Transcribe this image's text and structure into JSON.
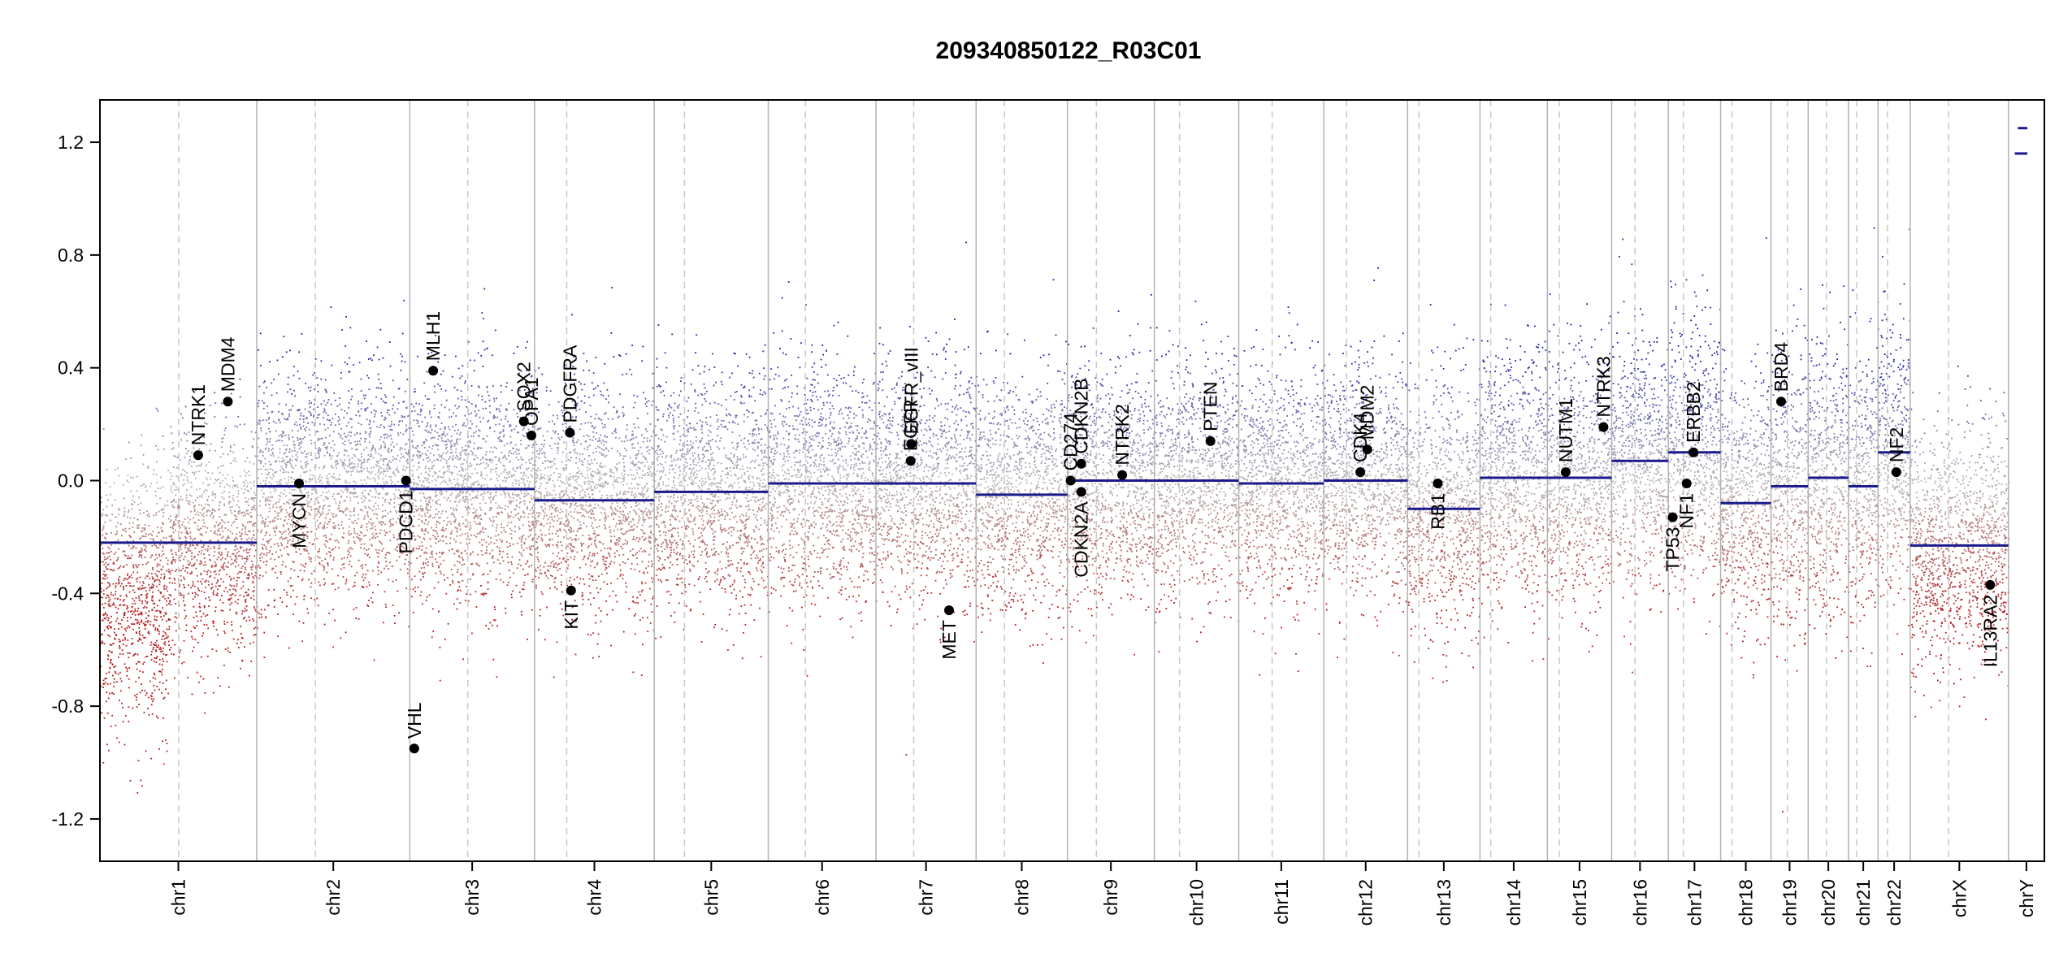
{
  "chart_data": {
    "type": "scatter",
    "title": "209340850122_R03C01",
    "xlabel": "",
    "ylabel": "",
    "ylim": [
      -1.35,
      1.35
    ],
    "y_ticks": [
      {
        "value": 1.2,
        "label": "1.2"
      },
      {
        "value": 0.8,
        "label": "0.8"
      },
      {
        "value": 0.4,
        "label": "0.4"
      },
      {
        "value": 0.0,
        "label": "0.0"
      },
      {
        "value": -0.4,
        "label": "-0.4"
      },
      {
        "value": -0.8,
        "label": "-0.8"
      },
      {
        "value": -1.2,
        "label": "-1.2"
      }
    ],
    "colors": {
      "gain": "#1f1fa3",
      "loss": "#b31b1b",
      "neutral": "#b4b4b4",
      "segment": "#1a1a8c",
      "boundary": "#b3b3b3",
      "centromere": "#c8c8c8",
      "gene": "#000000"
    },
    "chromosomes": [
      {
        "name": "chr1",
        "label": "chr1",
        "start": 0,
        "end": 249,
        "centromere": 125,
        "noise": 0.2
      },
      {
        "name": "chr2",
        "label": "chr2",
        "start": 249,
        "end": 492,
        "centromere": 342,
        "noise": 0.2
      },
      {
        "name": "chr3",
        "label": "chr3",
        "start": 492,
        "end": 690,
        "centromere": 584,
        "noise": 0.2
      },
      {
        "name": "chr4",
        "label": "chr4",
        "start": 690,
        "end": 880,
        "centromere": 741,
        "noise": 0.2
      },
      {
        "name": "chr5",
        "label": "chr5",
        "start": 880,
        "end": 1061,
        "centromere": 928,
        "noise": 0.2
      },
      {
        "name": "chr6",
        "label": "chr6",
        "start": 1061,
        "end": 1232,
        "centromere": 1120,
        "noise": 0.2
      },
      {
        "name": "chr7",
        "label": "chr7",
        "start": 1232,
        "end": 1391,
        "centromere": 1292,
        "noise": 0.2
      },
      {
        "name": "chr8",
        "label": "chr8",
        "start": 1391,
        "end": 1536,
        "centromere": 1436,
        "noise": 0.2
      },
      {
        "name": "chr9",
        "label": "chr9",
        "start": 1536,
        "end": 1674,
        "centromere": 1582,
        "noise": 0.2
      },
      {
        "name": "chr10",
        "label": "chr10",
        "start": 1674,
        "end": 1808,
        "centromere": 1714,
        "noise": 0.2
      },
      {
        "name": "chr11",
        "label": "chr11",
        "start": 1808,
        "end": 1943,
        "centromere": 1861,
        "noise": 0.2
      },
      {
        "name": "chr12",
        "label": "chr12",
        "start": 1943,
        "end": 2076,
        "centromere": 1979,
        "noise": 0.2
      },
      {
        "name": "chr13",
        "label": "chr13",
        "start": 2076,
        "end": 2191,
        "centromere": 2094,
        "noise": 0.22
      },
      {
        "name": "chr14",
        "label": "chr14",
        "start": 2191,
        "end": 2298,
        "centromere": 2208,
        "noise": 0.22
      },
      {
        "name": "chr15",
        "label": "chr15",
        "start": 2298,
        "end": 2400,
        "centromere": 2317,
        "noise": 0.22
      },
      {
        "name": "chr16",
        "label": "chr16",
        "start": 2400,
        "end": 2490,
        "centromere": 2437,
        "noise": 0.22
      },
      {
        "name": "chr17",
        "label": "chr17",
        "start": 2490,
        "end": 2573,
        "centromere": 2514,
        "noise": 0.22
      },
      {
        "name": "chr18",
        "label": "chr18",
        "start": 2573,
        "end": 2653,
        "centromere": 2591,
        "noise": 0.22
      },
      {
        "name": "chr19",
        "label": "chr19",
        "start": 2653,
        "end": 2712,
        "centromere": 2679,
        "noise": 0.24
      },
      {
        "name": "chr20",
        "label": "chr20",
        "start": 2712,
        "end": 2776,
        "centromere": 2741,
        "noise": 0.24
      },
      {
        "name": "chr21",
        "label": "chr21",
        "start": 2776,
        "end": 2823,
        "centromere": 2789,
        "noise": 0.24
      },
      {
        "name": "chr22",
        "label": "chr22",
        "start": 2823,
        "end": 2874,
        "centromere": 2838,
        "noise": 0.24
      },
      {
        "name": "chrX",
        "label": "chrX",
        "start": 2874,
        "end": 3030,
        "centromere": 2935,
        "noise": 0.2
      },
      {
        "name": "chrY",
        "label": "chrY",
        "start": 3030,
        "end": 3087,
        "centromere": null,
        "noise": 0.0
      }
    ],
    "segments": [
      {
        "chrom": "chr1",
        "start": 0,
        "end": 249,
        "value": -0.22
      },
      {
        "chrom": "chr2",
        "start": 249,
        "end": 492,
        "value": -0.02
      },
      {
        "chrom": "chr3",
        "start": 492,
        "end": 690,
        "value": -0.03
      },
      {
        "chrom": "chr4",
        "start": 690,
        "end": 880,
        "value": -0.07
      },
      {
        "chrom": "chr5",
        "start": 880,
        "end": 1061,
        "value": -0.04
      },
      {
        "chrom": "chr6",
        "start": 1061,
        "end": 1232,
        "value": -0.01
      },
      {
        "chrom": "chr7",
        "start": 1232,
        "end": 1391,
        "value": -0.01
      },
      {
        "chrom": "chr8",
        "start": 1391,
        "end": 1536,
        "value": -0.05
      },
      {
        "chrom": "chr9",
        "start": 1536,
        "end": 1674,
        "value": 0.0
      },
      {
        "chrom": "chr10",
        "start": 1674,
        "end": 1808,
        "value": 0.0
      },
      {
        "chrom": "chr11",
        "start": 1808,
        "end": 1943,
        "value": -0.01
      },
      {
        "chrom": "chr12",
        "start": 1943,
        "end": 2076,
        "value": 0.0
      },
      {
        "chrom": "chr13",
        "start": 2076,
        "end": 2191,
        "value": -0.1
      },
      {
        "chrom": "chr14",
        "start": 2191,
        "end": 2298,
        "value": 0.01
      },
      {
        "chrom": "chr15",
        "start": 2298,
        "end": 2400,
        "value": 0.01
      },
      {
        "chrom": "chr16",
        "start": 2400,
        "end": 2490,
        "value": 0.07
      },
      {
        "chrom": "chr17",
        "start": 2490,
        "end": 2573,
        "value": 0.1
      },
      {
        "chrom": "chr18",
        "start": 2573,
        "end": 2653,
        "value": -0.08
      },
      {
        "chrom": "chr19",
        "start": 2653,
        "end": 2712,
        "value": -0.02
      },
      {
        "chrom": "chr20",
        "start": 2712,
        "end": 2776,
        "value": 0.01
      },
      {
        "chrom": "chr21",
        "start": 2776,
        "end": 2823,
        "value": -0.02
      },
      {
        "chrom": "chr22",
        "start": 2823,
        "end": 2874,
        "value": 0.1
      },
      {
        "chrom": "chrX",
        "start": 2874,
        "end": 3030,
        "value": -0.23
      },
      {
        "chrom": "chrY",
        "start": 3040,
        "end": 3060,
        "value": 1.16
      },
      {
        "chrom": "chrY",
        "start": 3045,
        "end": 3060,
        "value": 1.25
      }
    ],
    "genes": [
      {
        "name": "NTRK1",
        "x": 156,
        "value": 0.09,
        "label_side": "above"
      },
      {
        "name": "MDM4",
        "x": 203,
        "value": 0.28,
        "label_side": "above"
      },
      {
        "name": "MYCN",
        "x": 316,
        "value": -0.01,
        "label_side": "below"
      },
      {
        "name": "PDCD1",
        "x": 486,
        "value": 0.0,
        "label_side": "below"
      },
      {
        "name": "VHL",
        "x": 499,
        "value": -0.95,
        "label_side": "above"
      },
      {
        "name": "MLH1",
        "x": 529,
        "value": 0.39,
        "label_side": "above"
      },
      {
        "name": "SOX2",
        "x": 673,
        "value": 0.21,
        "label_side": "above"
      },
      {
        "name": "OPA1",
        "x": 685,
        "value": 0.16,
        "label_side": "above"
      },
      {
        "name": "PDGFRA",
        "x": 746,
        "value": 0.17,
        "label_side": "above"
      },
      {
        "name": "KIT",
        "x": 748,
        "value": -0.39,
        "label_side": "below"
      },
      {
        "name": "EGFR",
        "x": 1287,
        "value": 0.07,
        "label_side": "above"
      },
      {
        "name": "EGFR_vIII",
        "x": 1288,
        "value": 0.13,
        "label_side": "above"
      },
      {
        "name": "MET",
        "x": 1348,
        "value": -0.46,
        "label_side": "below"
      },
      {
        "name": "CD274",
        "x": 1541,
        "value": 0.0,
        "label_side": "above"
      },
      {
        "name": "CDKN2B",
        "x": 1558,
        "value": 0.06,
        "label_side": "above"
      },
      {
        "name": "CDKN2A",
        "x": 1558,
        "value": -0.04,
        "label_side": "below"
      },
      {
        "name": "NTRK2",
        "x": 1623,
        "value": 0.02,
        "label_side": "above"
      },
      {
        "name": "PTEN",
        "x": 1763,
        "value": 0.14,
        "label_side": "above"
      },
      {
        "name": "CDK4",
        "x": 2001,
        "value": 0.03,
        "label_side": "above"
      },
      {
        "name": "MDM2",
        "x": 2012,
        "value": 0.11,
        "label_side": "above"
      },
      {
        "name": "RB1",
        "x": 2124,
        "value": -0.01,
        "label_side": "below"
      },
      {
        "name": "NUTM1",
        "x": 2327,
        "value": 0.03,
        "label_side": "above"
      },
      {
        "name": "NTRK3",
        "x": 2387,
        "value": 0.19,
        "label_side": "above"
      },
      {
        "name": "TP53",
        "x": 2497,
        "value": -0.13,
        "label_side": "below"
      },
      {
        "name": "NF1",
        "x": 2519,
        "value": -0.01,
        "label_side": "below"
      },
      {
        "name": "ERBB2",
        "x": 2530,
        "value": 0.1,
        "label_side": "above"
      },
      {
        "name": "BRD4",
        "x": 2669,
        "value": 0.28,
        "label_side": "above"
      },
      {
        "name": "NF2",
        "x": 2852,
        "value": 0.03,
        "label_side": "above"
      },
      {
        "name": "IL13RA2",
        "x": 3001,
        "value": -0.37,
        "label_side": "below"
      }
    ]
  }
}
